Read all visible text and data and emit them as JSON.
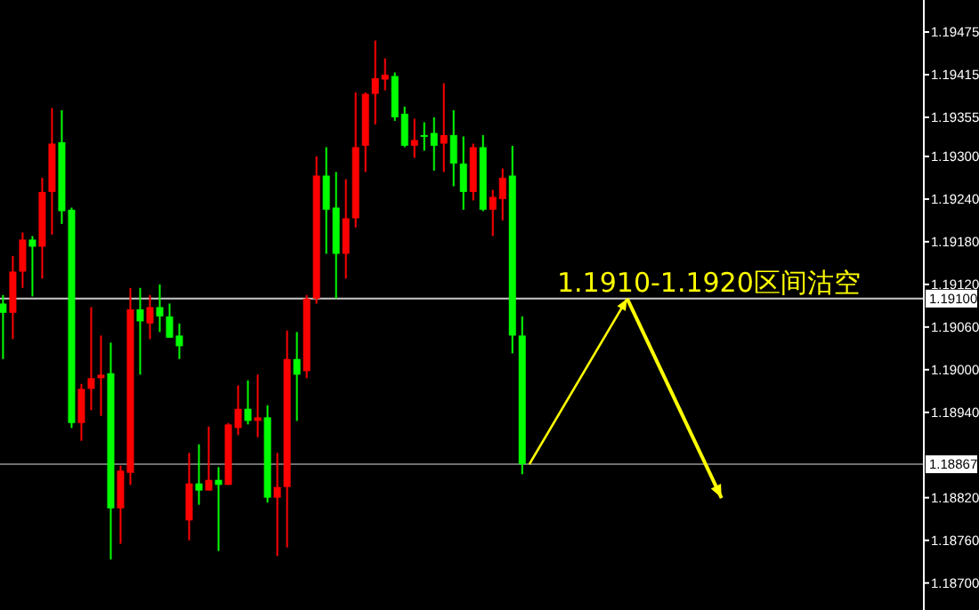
{
  "chart_data": {
    "type": "candlestick",
    "categories": [
      null,
      null,
      null,
      null,
      null,
      null,
      null,
      null,
      null,
      null,
      null,
      null,
      null,
      null,
      null,
      null,
      null,
      null,
      null,
      null,
      null,
      null,
      null,
      null,
      null,
      null,
      null,
      null,
      null,
      null,
      null,
      null,
      null,
      null,
      null,
      null,
      null,
      null,
      null,
      null,
      null,
      null,
      null,
      null,
      null,
      null,
      null,
      null,
      null,
      null,
      null,
      null,
      null,
      null,
      null,
      null,
      null,
      null,
      null,
      null,
      null,
      null,
      null,
      null,
      null,
      null,
      null,
      null,
      null,
      null,
      null,
      null,
      null,
      null,
      null,
      null,
      null,
      null,
      null,
      null,
      null,
      null,
      null,
      null,
      null,
      null,
      null,
      null,
      null,
      null,
      null,
      null,
      null,
      null
    ],
    "ohlc": [
      [
        1.19093,
        1.19105,
        1.19015,
        1.1908
      ],
      [
        1.1908,
        1.1916,
        1.19043,
        1.19138
      ],
      [
        1.19138,
        1.19193,
        1.19115,
        1.19183
      ],
      [
        1.19183,
        1.19188,
        1.19103,
        1.19173
      ],
      [
        1.19173,
        1.1927,
        1.19128,
        1.1925
      ],
      [
        1.1925,
        1.19368,
        1.1919,
        1.19318
      ],
      [
        1.1932,
        1.19365,
        1.19205,
        1.19223
      ],
      [
        1.19225,
        1.19228,
        1.18918,
        1.18925
      ],
      [
        1.18925,
        1.1898,
        1.189,
        1.18973
      ],
      [
        1.18973,
        1.19088,
        1.18943,
        1.18988
      ],
      [
        1.18988,
        1.19048,
        1.18935,
        1.18993
      ],
      [
        1.18995,
        1.19038,
        1.18733,
        1.18805
      ],
      [
        1.18805,
        1.18865,
        1.18755,
        1.18858
      ],
      [
        1.18855,
        1.19115,
        1.18838,
        1.19085
      ],
      [
        1.19085,
        1.19115,
        1.18993,
        1.19068
      ],
      [
        1.19065,
        1.19105,
        1.19043,
        1.19088
      ],
      [
        1.19088,
        1.1912,
        1.19053,
        1.19075
      ],
      [
        1.19075,
        1.19093,
        1.19045,
        1.19045
      ],
      [
        1.19048,
        1.19065,
        1.19015,
        1.19033
      ],
      [
        1.18788,
        1.18883,
        1.1876,
        1.1884
      ],
      [
        1.1884,
        1.18895,
        1.1881,
        1.1883
      ],
      [
        1.1883,
        1.1892,
        1.1883,
        1.18845
      ],
      [
        1.18845,
        1.18863,
        1.18745,
        1.18838
      ],
      [
        1.18838,
        1.18925,
        1.18838,
        1.18923
      ],
      [
        1.18918,
        1.18978,
        1.18908,
        1.18945
      ],
      [
        1.18945,
        1.18985,
        1.18923,
        1.18928
      ],
      [
        1.18928,
        1.18993,
        1.18905,
        1.18933
      ],
      [
        1.18933,
        1.1895,
        1.18813,
        1.1882
      ],
      [
        1.1882,
        1.18883,
        1.18738,
        1.18835
      ],
      [
        1.18835,
        1.19055,
        1.1875,
        1.19015
      ],
      [
        1.19015,
        1.19053,
        1.18928,
        1.18993
      ],
      [
        1.18998,
        1.19105,
        1.18988,
        1.191
      ],
      [
        1.191,
        1.193,
        1.19093,
        1.19273
      ],
      [
        1.19273,
        1.19313,
        1.19163,
        1.19225
      ],
      [
        1.19228,
        1.19278,
        1.191,
        1.19163
      ],
      [
        1.19163,
        1.19268,
        1.19128,
        1.19213
      ],
      [
        1.19213,
        1.1939,
        1.192,
        1.19313
      ],
      [
        1.19315,
        1.1939,
        1.19278,
        1.19388
      ],
      [
        1.19388,
        1.19463,
        1.19345,
        1.1941
      ],
      [
        1.19408,
        1.19438,
        1.19393,
        1.19415
      ],
      [
        1.19413,
        1.19418,
        1.1935,
        1.19355
      ],
      [
        1.1936,
        1.1937,
        1.19313,
        1.19315
      ],
      [
        1.19315,
        1.19353,
        1.19298,
        1.19323
      ],
      [
        1.1933,
        1.19348,
        1.19308,
        1.19328
      ],
      [
        1.19333,
        1.19355,
        1.1928,
        1.19315
      ],
      [
        1.19318,
        1.19403,
        1.19278,
        1.1933
      ],
      [
        1.1933,
        1.19365,
        1.19258,
        1.1929
      ],
      [
        1.1929,
        1.19328,
        1.19225,
        1.1925
      ],
      [
        1.1925,
        1.19318,
        1.19238,
        1.19313
      ],
      [
        1.19313,
        1.1933,
        1.19223,
        1.19225
      ],
      [
        1.19225,
        1.19253,
        1.19188,
        1.19243
      ],
      [
        1.1924,
        1.19283,
        1.1921,
        1.1927
      ],
      [
        1.19273,
        1.19315,
        1.19023,
        1.19048
      ],
      [
        1.19048,
        1.19075,
        1.18853,
        1.18867
      ],
      null,
      null,
      null,
      null,
      null,
      null,
      null,
      null,
      null,
      null,
      null,
      null,
      null,
      null,
      null,
      null,
      null,
      null,
      null,
      null,
      null,
      null,
      null,
      null,
      null,
      null,
      null,
      null,
      null,
      null,
      null,
      null,
      null,
      null,
      null,
      null,
      null,
      null,
      null,
      null
    ],
    "colors": [
      "#00ff00",
      "#ff0000",
      "#ff0000",
      "#00ff00",
      "#ff0000",
      "#ff0000",
      "#00ff00",
      "#00ff00",
      "#ff0000",
      "#ff0000",
      "#ff0000",
      "#00ff00",
      "#ff0000",
      "#ff0000",
      "#00ff00",
      "#ff0000",
      "#00ff00",
      "#00ff00",
      "#00ff00",
      "#ff0000",
      "#00ff00",
      "#ff0000",
      "#00ff00",
      "#ff0000",
      "#ff0000",
      "#00ff00",
      "#ff0000",
      "#00ff00",
      "#ff0000",
      "#ff0000",
      "#00ff00",
      "#ff0000",
      "#ff0000",
      "#00ff00",
      "#00ff00",
      "#ff0000",
      "#ff0000",
      "#ff0000",
      "#ff0000",
      "#ff0000",
      "#00ff00",
      "#00ff00",
      "#ff0000",
      "#00ff00",
      "#00ff00",
      "#ff0000",
      "#00ff00",
      "#00ff00",
      "#ff0000",
      "#00ff00",
      "#ff0000",
      "#ff0000",
      "#00ff00",
      "#00ff00",
      null,
      null,
      null,
      null,
      null,
      null,
      null,
      null,
      null,
      null,
      null,
      null,
      null,
      null,
      null,
      null,
      null,
      null,
      null,
      null,
      null,
      null,
      null,
      null,
      null,
      null,
      null,
      null,
      null,
      null,
      null,
      null,
      null,
      null,
      null,
      null,
      null,
      null,
      null,
      null
    ],
    "ylim": [
      1.18662,
      1.1952
    ],
    "yticks": [
      {
        "value": 1.19475,
        "label": "1.19475"
      },
      {
        "value": 1.19415,
        "label": "1.19415"
      },
      {
        "value": 1.19355,
        "label": "1.19355"
      },
      {
        "value": 1.193,
        "label": "1.19300"
      },
      {
        "value": 1.1924,
        "label": "1.19240"
      },
      {
        "value": 1.1918,
        "label": "1.19180"
      },
      {
        "value": 1.1912,
        "label": "1.19120"
      },
      {
        "value": 1.1906,
        "label": "1.19060"
      },
      {
        "value": 1.19,
        "label": "1.19000"
      },
      {
        "value": 1.1894,
        "label": "1.18940"
      },
      {
        "value": 1.1882,
        "label": "1.18820"
      },
      {
        "value": 1.1876,
        "label": "1.18760"
      },
      {
        "value": 1.187,
        "label": "1.18700"
      }
    ],
    "ref_lines": [
      {
        "axis": "y",
        "value": 1.191,
        "label": "1.19100",
        "color": "#c8c8c8"
      },
      {
        "axis": "y",
        "value": 1.18867,
        "label": "1.18867",
        "color": "#707070"
      }
    ],
    "annotations": [
      "1.1910-1.1920区间沽空"
    ],
    "tick_labels": "y"
  }
}
